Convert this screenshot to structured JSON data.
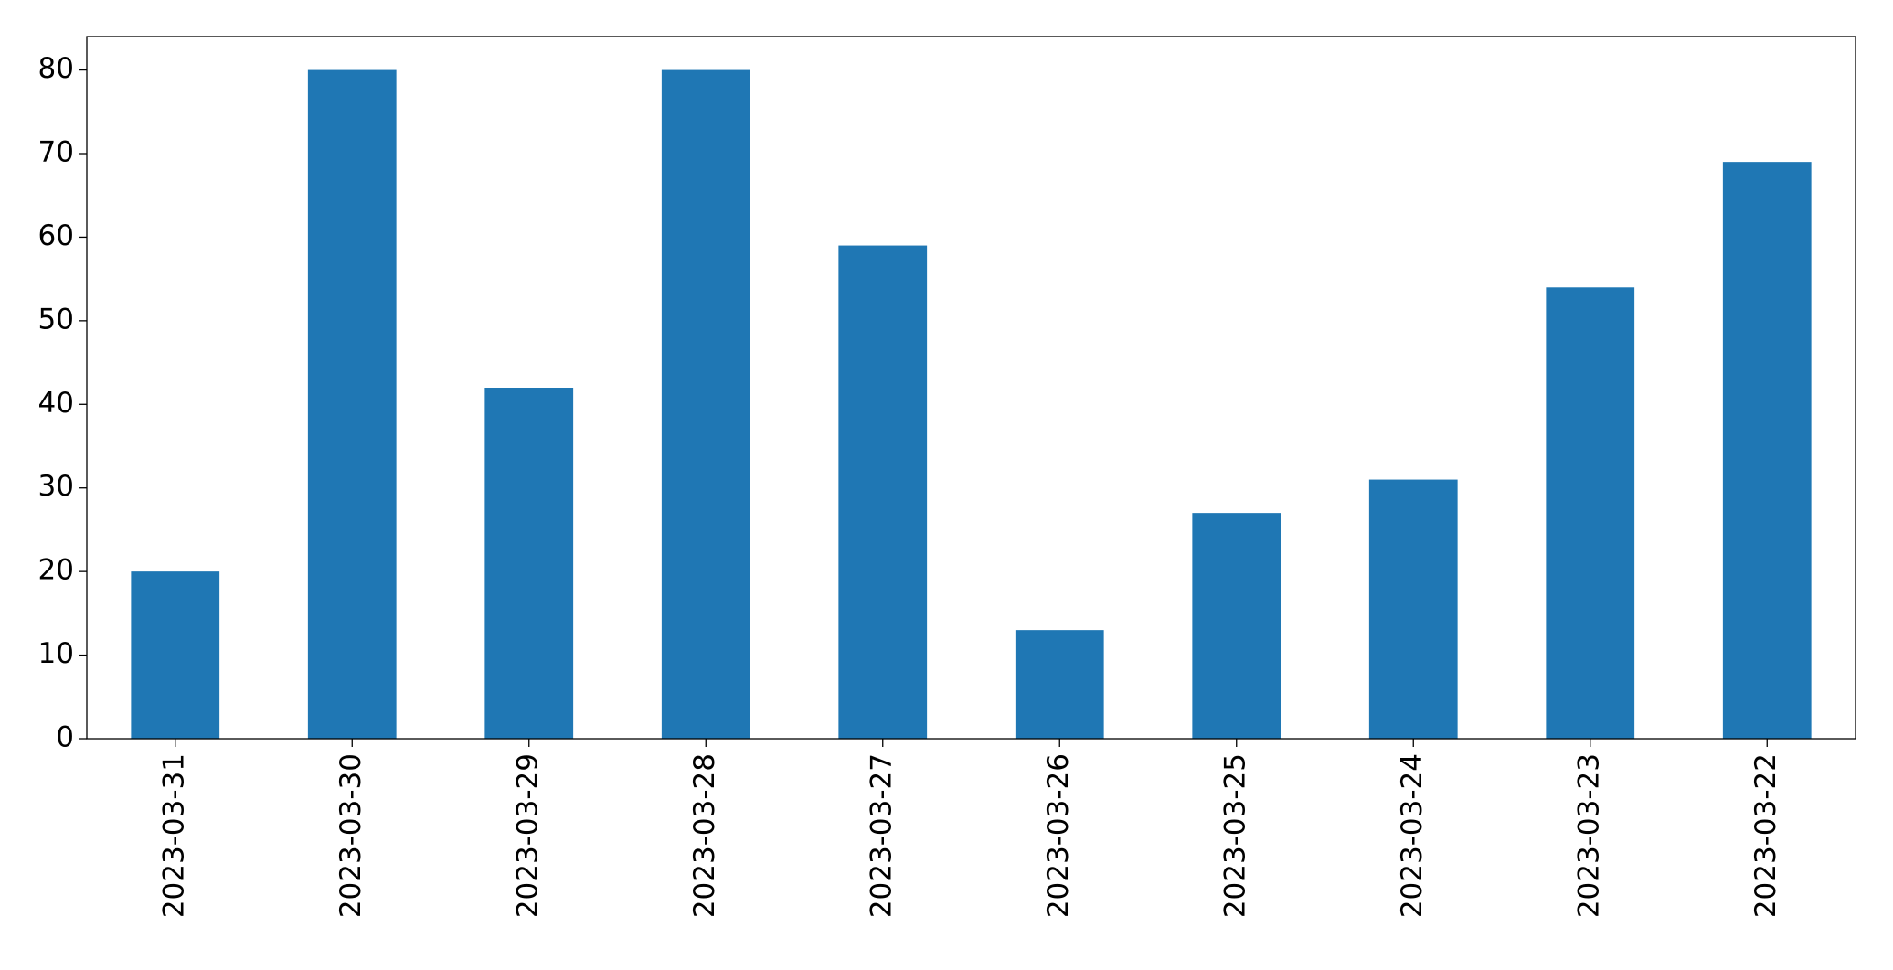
{
  "chart_data": {
    "type": "bar",
    "categories": [
      "2023-03-31",
      "2023-03-30",
      "2023-03-29",
      "2023-03-28",
      "2023-03-27",
      "2023-03-26",
      "2023-03-25",
      "2023-03-24",
      "2023-03-23",
      "2023-03-22"
    ],
    "values": [
      20,
      80,
      42,
      80,
      59,
      13,
      27,
      31,
      54,
      69
    ],
    "color": "#1f77b4",
    "ylim": [
      0,
      84
    ],
    "yticks": [
      0,
      10,
      20,
      30,
      40,
      50,
      60,
      70,
      80
    ],
    "grid": false
  }
}
